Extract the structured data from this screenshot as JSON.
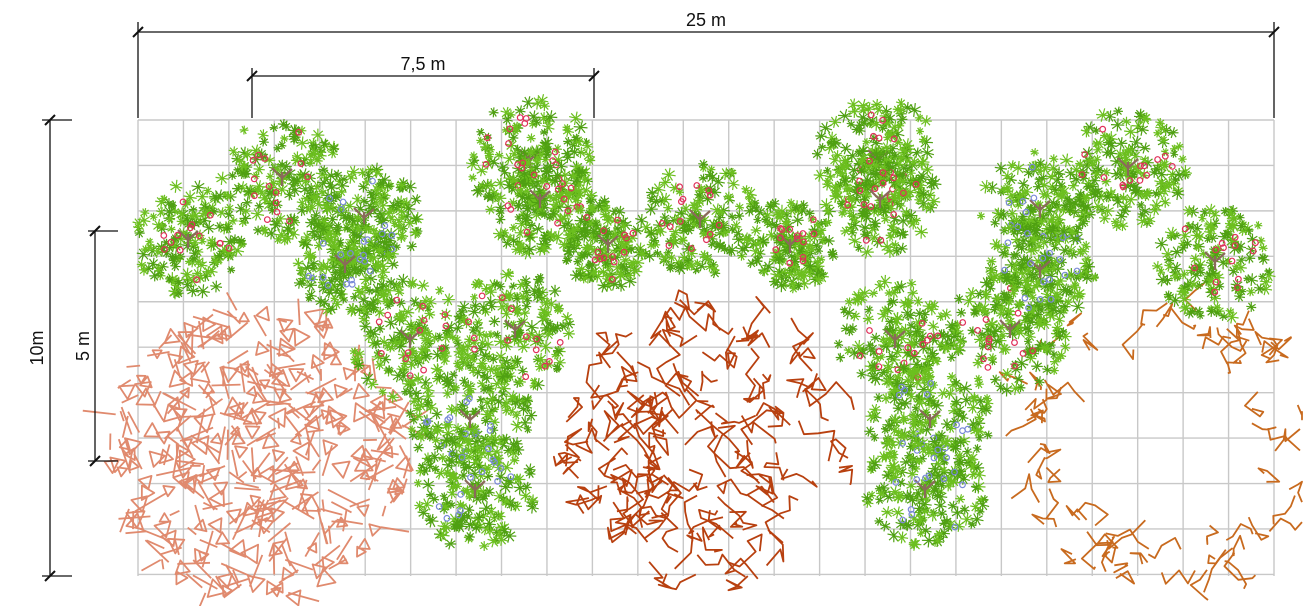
{
  "dimensions": {
    "total_width": "25 m",
    "tree_spacing": "7,5 m",
    "total_height": "10m",
    "row_spacing": "5 m"
  },
  "colors": {
    "grid": "#c8c8c8",
    "line": "#111111",
    "leaf": "#6cbf1f",
    "leaf_dark": "#4fa012",
    "trunk": "#8a6a5a",
    "fruit_red": "#e0305a",
    "fruit_blue": "#7a8ad8",
    "shrub_salmon": "#e08a6e",
    "shrub_red": "#b8400f",
    "shrub_orange": "#c86a1e"
  },
  "legend_icons": [
    "fruit-tree-icon",
    "shrub-icon",
    "dimension-line-icon"
  ]
}
